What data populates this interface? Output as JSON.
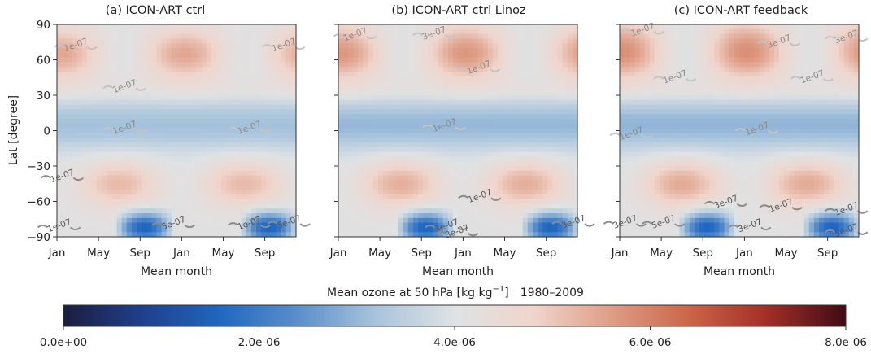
{
  "colors": {
    "cmap": [
      "#1b1e3e",
      "#1f3f8c",
      "#1f67c0",
      "#5b8fcb",
      "#a9c4dc",
      "#dfe2e4",
      "#f0d5cc",
      "#df9d86",
      "#cb6548",
      "#a32d26",
      "#3f0c16"
    ],
    "contour_light": "#c4c4c4",
    "contour_mid": "#8c8c8c",
    "contour_dark": "#111111"
  },
  "chart_data": [
    {
      "type": "heatmap",
      "title": "(a) ICON-ART ctrl",
      "ylabel": "Lat [degree]",
      "xlabel": "Mean month",
      "xticks": [
        "Jan",
        "May",
        "Sep",
        "Jan",
        "May",
        "Sep"
      ],
      "yticks": [
        "90",
        "60",
        "30",
        "0",
        "−30",
        "−60",
        "−90"
      ],
      "ylim": [
        -90,
        90
      ],
      "x_range_months": [
        1,
        24
      ],
      "params": {
        "amp": 1.0,
        "jamp": 0.0
      },
      "contour_levels": [
        "1e-07",
        "3e-07",
        "5e-07"
      ],
      "contour_labels": [
        {
          "text": "1e-07",
          "month": 7.5,
          "lat": 38,
          "cls": "light"
        },
        {
          "text": "1e-07",
          "month": 7.5,
          "lat": 3,
          "cls": "light"
        },
        {
          "text": "1e-07",
          "month": 2.8,
          "lat": 73,
          "cls": "light"
        },
        {
          "text": "1e-07",
          "month": 22.8,
          "lat": 73,
          "cls": "light"
        },
        {
          "text": "1e-07",
          "month": 19.5,
          "lat": 3,
          "cls": "light"
        },
        {
          "text": "1e-07",
          "month": 1.5,
          "lat": -38,
          "cls": "mid"
        },
        {
          "text": "1e-07",
          "month": 19.5,
          "lat": -78,
          "cls": "mid"
        },
        {
          "text": "1e-07",
          "month": 1.2,
          "lat": -80,
          "cls": "mid"
        },
        {
          "text": "5e-07",
          "month": 12.2,
          "lat": -78,
          "cls": "mid"
        },
        {
          "text": "5e-07",
          "month": 23.3,
          "lat": -77,
          "cls": "mid"
        }
      ]
    },
    {
      "type": "heatmap",
      "title": "(b) ICON-ART ctrl Linoz",
      "xlabel": "Mean month",
      "xticks": [
        "Jan",
        "May",
        "Sep",
        "Jan",
        "May",
        "Sep"
      ],
      "ylim": [
        -90,
        90
      ],
      "x_range_months": [
        1,
        24
      ],
      "params": {
        "amp": 1.15,
        "jamp": 0.2
      },
      "contour_levels": [
        "1e-07",
        "3e-07"
      ],
      "contour_labels": [
        {
          "text": "1e-07",
          "month": 2.6,
          "lat": 82,
          "cls": "light"
        },
        {
          "text": "3e-07",
          "month": 10.2,
          "lat": 83,
          "cls": "light"
        },
        {
          "text": "1e-07",
          "month": 14.5,
          "lat": 54,
          "cls": "light"
        },
        {
          "text": "1e-07",
          "month": 11.2,
          "lat": 5,
          "cls": "light"
        },
        {
          "text": "1e-07",
          "month": 14.6,
          "lat": -55,
          "cls": "mid"
        },
        {
          "text": "3e-07",
          "month": 11.4,
          "lat": -80,
          "cls": "mid"
        },
        {
          "text": "3e-07",
          "month": 12.4,
          "lat": -85,
          "cls": "mid"
        },
        {
          "text": "3e-07",
          "month": 23.6,
          "lat": -77,
          "cls": "mid"
        }
      ]
    },
    {
      "type": "heatmap",
      "title": "(c) ICON-ART feedback",
      "xlabel": "Mean month",
      "xticks": [
        "Jan",
        "May",
        "Sep",
        "Jan",
        "May",
        "Sep"
      ],
      "ylim": [
        -90,
        90
      ],
      "x_range_months": [
        1,
        24
      ],
      "params": {
        "amp": 1.2,
        "jamp": 0.5
      },
      "contour_levels": [
        "1e-07",
        "3e-07",
        "5e-07"
      ],
      "contour_labels": [
        {
          "text": "1e-07",
          "month": 3.2,
          "lat": 86,
          "cls": "light"
        },
        {
          "text": "3e-07",
          "month": 16.3,
          "lat": 76,
          "cls": "light"
        },
        {
          "text": "3e-07",
          "month": 22.8,
          "lat": 80,
          "cls": "light"
        },
        {
          "text": "1e-07",
          "month": 6.3,
          "lat": 46,
          "cls": "light"
        },
        {
          "text": "1e-07",
          "month": 19.5,
          "lat": 46,
          "cls": "light"
        },
        {
          "text": "1e-07",
          "month": 14.2,
          "lat": 2,
          "cls": "light"
        },
        {
          "text": "1e-07",
          "month": 2.1,
          "lat": -2,
          "cls": "light"
        },
        {
          "text": "3e-07",
          "month": 11.2,
          "lat": -60,
          "cls": "mid"
        },
        {
          "text": "1e-07",
          "month": 16.5,
          "lat": -63,
          "cls": "mid"
        },
        {
          "text": "1e-07",
          "month": 22.8,
          "lat": -66,
          "cls": "mid"
        },
        {
          "text": "3e-07",
          "month": 1.5,
          "lat": -77,
          "cls": "mid"
        },
        {
          "text": "5e-07",
          "month": 5.2,
          "lat": -77,
          "cls": "mid"
        },
        {
          "text": "3e-07",
          "month": 13.5,
          "lat": -80,
          "cls": "mid"
        },
        {
          "text": "5e-07",
          "month": 22.8,
          "lat": -84,
          "cls": "mid"
        }
      ]
    }
  ],
  "colorbar": {
    "label_text": "Mean ozone at 50 hPa [kg kg",
    "label_sup": "−1",
    "label_close": "]",
    "period": "1980–2009",
    "vmin": 0.0,
    "vmax": 8e-06,
    "ticks": [
      {
        "value": 0.0,
        "label": "0.0e+00"
      },
      {
        "value": 2e-06,
        "label": "2.0e-06"
      },
      {
        "value": 4e-06,
        "label": "4.0e-06"
      },
      {
        "value": 6e-06,
        "label": "6.0e-06"
      },
      {
        "value": 8e-06,
        "label": "8.0e-06"
      }
    ]
  }
}
